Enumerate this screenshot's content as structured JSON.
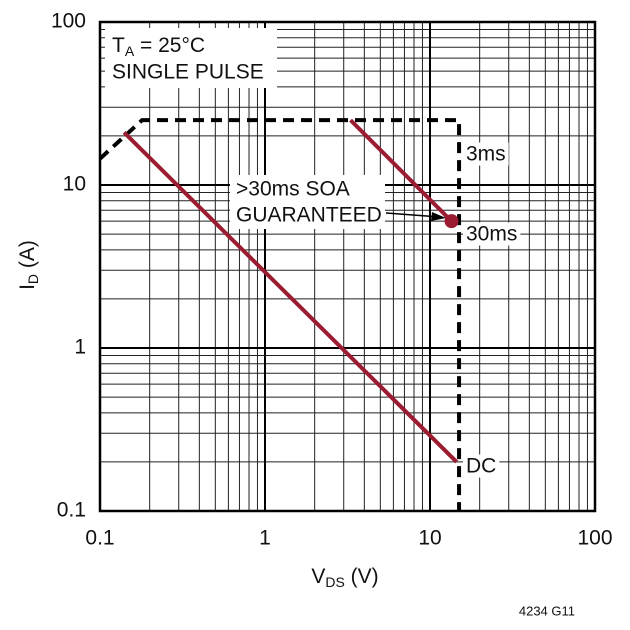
{
  "chart_data": {
    "type": "line",
    "x_label": {
      "main": "V",
      "sub": "DS",
      "rest": " (V)"
    },
    "y_label": {
      "main": "I",
      "sub": "D",
      "rest": " (A)"
    },
    "xscale": "log",
    "yscale": "log",
    "xlim": [
      0.1,
      100
    ],
    "ylim": [
      0.1,
      100
    ],
    "xticks": [
      0.1,
      1,
      10,
      100
    ],
    "yticks": [
      0.1,
      1,
      10,
      100
    ],
    "grid": true,
    "minor_grid": true,
    "series": [
      {
        "name": "3ms",
        "color": "#000000",
        "dash": true,
        "x": [
          0.1,
          0.18,
          15,
          15
        ],
        "values": [
          14.5,
          25,
          25,
          0.1
        ]
      },
      {
        "name": "30ms",
        "color": "#9b1b30",
        "end_marker": true,
        "x": [
          3.3,
          13.5
        ],
        "values": [
          25,
          6
        ]
      },
      {
        "name": "DC",
        "color": "#9b1b30",
        "x": [
          0.14,
          14.5
        ],
        "values": [
          21,
          0.2
        ]
      }
    ],
    "conditions": {
      "t_main": "T",
      "t_sub": "A",
      "t_rest": " = 25°C",
      "line2": "SINGLE PULSE"
    },
    "annotation": {
      "line1": ">30ms SOA",
      "line2": "GUARANTEED"
    },
    "figure_id": "4234 G11"
  }
}
